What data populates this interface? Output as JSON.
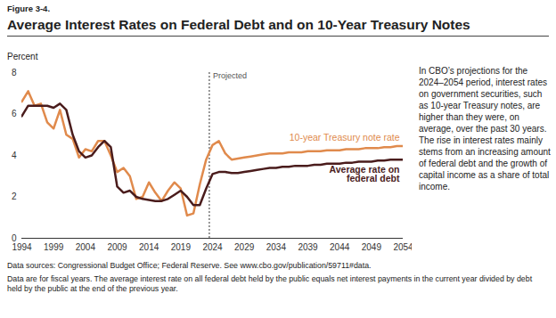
{
  "chart_data": {
    "type": "line",
    "figure_label": "Figure 3-4.",
    "title": "Average Interest Rates on Federal Debt and on 10-Year Treasury Notes",
    "y_label": "Percent",
    "x": [
      1994,
      1995,
      1996,
      1997,
      1998,
      1999,
      2000,
      2001,
      2002,
      2003,
      2004,
      2005,
      2006,
      2007,
      2008,
      2009,
      2010,
      2011,
      2012,
      2013,
      2014,
      2015,
      2016,
      2017,
      2018,
      2019,
      2020,
      2021,
      2022,
      2023,
      2024,
      2025,
      2026,
      2027,
      2028,
      2029,
      2030,
      2031,
      2032,
      2033,
      2034,
      2035,
      2036,
      2037,
      2038,
      2039,
      2040,
      2041,
      2042,
      2043,
      2044,
      2045,
      2046,
      2047,
      2048,
      2049,
      2050,
      2051,
      2052,
      2053,
      2054
    ],
    "series": [
      {
        "name": "10-year Treasury note rate",
        "color": "#e08a4c",
        "values": [
          6.6,
          7.1,
          6.4,
          6.5,
          5.6,
          5.3,
          6.2,
          5.0,
          4.8,
          3.9,
          4.3,
          4.2,
          4.7,
          4.7,
          4.0,
          3.2,
          3.4,
          3.0,
          1.9,
          2.0,
          2.7,
          2.2,
          1.8,
          2.3,
          2.7,
          2.4,
          1.1,
          1.2,
          2.6,
          3.8,
          4.5,
          4.7,
          4.1,
          3.8,
          3.85,
          3.9,
          3.95,
          4.0,
          4.05,
          4.1,
          4.1,
          4.1,
          4.15,
          4.15,
          4.15,
          4.2,
          4.2,
          4.2,
          4.25,
          4.25,
          4.25,
          4.3,
          4.3,
          4.3,
          4.35,
          4.35,
          4.35,
          4.4,
          4.4,
          4.45,
          4.45
        ]
      },
      {
        "name": "Average rate on federal debt",
        "color": "#4a1c1c",
        "values": [
          5.9,
          6.4,
          6.4,
          6.4,
          6.4,
          6.3,
          6.5,
          6.2,
          5.0,
          4.2,
          3.9,
          4.0,
          4.4,
          4.7,
          4.4,
          2.5,
          2.2,
          2.3,
          2.0,
          1.9,
          1.85,
          1.8,
          1.8,
          1.9,
          2.1,
          2.3,
          2.0,
          1.6,
          1.6,
          2.4,
          3.1,
          3.2,
          3.2,
          3.15,
          3.15,
          3.2,
          3.25,
          3.3,
          3.35,
          3.4,
          3.4,
          3.45,
          3.45,
          3.5,
          3.5,
          3.5,
          3.55,
          3.55,
          3.6,
          3.6,
          3.6,
          3.65,
          3.65,
          3.7,
          3.7,
          3.7,
          3.75,
          3.75,
          3.8,
          3.8,
          3.8
        ]
      }
    ],
    "xlim": [
      1994,
      2054
    ],
    "xticks": [
      1994,
      1999,
      2004,
      2009,
      2014,
      2019,
      2024,
      2029,
      2034,
      2039,
      2044,
      2049,
      2054
    ],
    "ylim": [
      0,
      8
    ],
    "yticks": [
      0,
      2,
      4,
      6,
      8
    ],
    "grid": false,
    "annotations": [
      {
        "text": "Projected",
        "x": 2023.5
      }
    ],
    "side_note": "In CBO’s projections for the 2024–2054 period, interest rates on government securities, such as 10-year Treasury notes, are higher than they were, on average, over the past 30 years. The rise in interest rates mainly stems from an increasing amount of federal debt and the growth of capital income as a share of total income.",
    "source": "Data sources: Congressional Budget Office; Federal Reserve. See www.cbo.gov/publication/59711#data.",
    "footnote": "Data are for fiscal years. The average interest rate on all federal debt held by the public equals net interest payments in the current year divided by debt held by the public at the end of the previous year."
  }
}
